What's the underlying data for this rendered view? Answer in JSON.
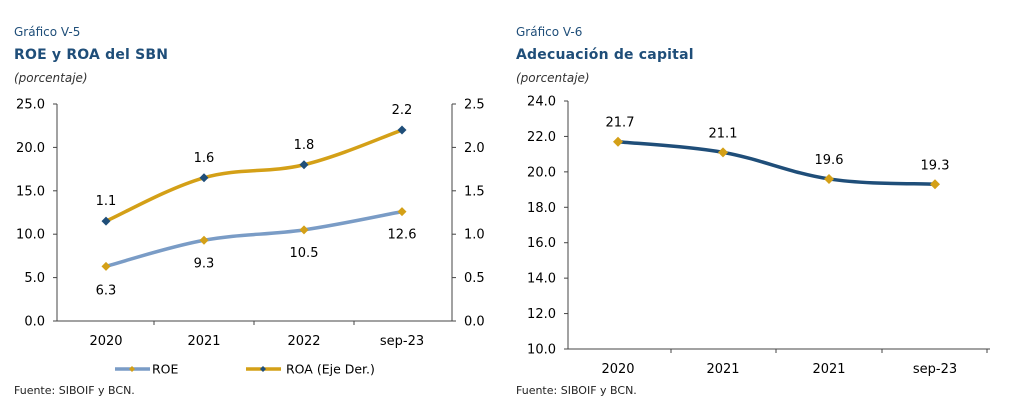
{
  "chart_data": [
    {
      "type": "line",
      "figure_number": "Gráfico V-5",
      "title": "ROE y ROA del SBN",
      "unit": "(porcentaje)",
      "categories": [
        "2020",
        "2021",
        "2022",
        "sep-23"
      ],
      "ylim": [
        0,
        25
      ],
      "yticks": [
        "0.0",
        "5.0",
        "10.0",
        "15.0",
        "20.0",
        "25.0"
      ],
      "y2lim": [
        0,
        2.5
      ],
      "y2ticks": [
        "0.0",
        "0.5",
        "1.0",
        "1.5",
        "2.0",
        "2.5"
      ],
      "grid": false,
      "legend_position": "bottom",
      "series": [
        {
          "name": "ROE",
          "axis": "left",
          "values": [
            6.3,
            9.3,
            10.5,
            12.6
          ],
          "labels": [
            "6.3",
            "9.3",
            "10.5",
            "12.6"
          ],
          "color": "#7a9cc6",
          "marker_color": "#d4a017"
        },
        {
          "name": "ROA (Eje Der.)",
          "axis": "right",
          "values": [
            1.15,
            1.65,
            1.8,
            2.2
          ],
          "labels": [
            "1.1",
            "1.6",
            "1.8",
            "2.2"
          ],
          "color": "#d4a017",
          "marker_color": "#1f4e79"
        }
      ],
      "source": "Fuente: SIBOIF y BCN."
    },
    {
      "type": "line",
      "figure_number": "Gráfico V-6",
      "title": "Adecuación de capital",
      "unit": "(porcentaje)",
      "categories": [
        "2020",
        "2021",
        "2021",
        "sep-23"
      ],
      "ylim": [
        10,
        24
      ],
      "yticks": [
        "10.0",
        "12.0",
        "14.0",
        "16.0",
        "18.0",
        "20.0",
        "22.0",
        "24.0"
      ],
      "grid": false,
      "series": [
        {
          "values": [
            21.7,
            21.1,
            19.6,
            19.3
          ],
          "labels": [
            "21.7",
            "21.1",
            "19.6",
            "19.3"
          ],
          "color": "#1f4e79",
          "marker_color": "#d4a017"
        }
      ],
      "source": "Fuente: SIBOIF y BCN."
    }
  ]
}
